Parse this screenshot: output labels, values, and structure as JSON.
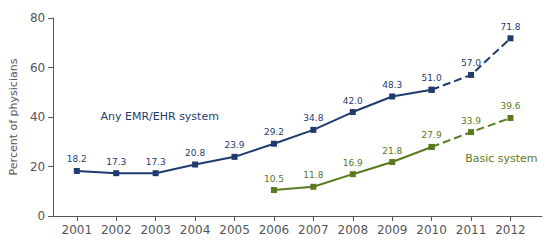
{
  "chart_data": {
    "type": "line",
    "ylabel": "Percent of physicians",
    "x": [
      2001,
      2002,
      2003,
      2004,
      2005,
      2006,
      2007,
      2008,
      2009,
      2010,
      2011,
      2012
    ],
    "xlim": [
      2000.4,
      2012.8
    ],
    "xticks": [
      2001,
      2002,
      2003,
      2004,
      2005,
      2006,
      2007,
      2008,
      2009,
      2010,
      2011,
      2012
    ],
    "ylim": [
      0,
      80
    ],
    "yticks": [
      0,
      20,
      40,
      60,
      80
    ],
    "grid": false,
    "data_labels": true,
    "marker": "square",
    "series": [
      {
        "name": "Any EMR/EHR system",
        "color": "#1F3B6E",
        "line_style": "solid",
        "values": [
          18.2,
          17.3,
          17.3,
          20.8,
          23.9,
          29.2,
          34.8,
          42.0,
          48.3,
          51.0,
          null,
          null
        ],
        "value_labels": [
          "18.2",
          "17.3",
          "17.3",
          "20.8",
          "23.9",
          "29.2",
          "34.8",
          "42.0",
          "48.3",
          "51.0",
          null,
          null
        ]
      },
      {
        "name": "Any EMR/EHR system",
        "color": "#1F3B6E",
        "line_style": "dashed",
        "values": [
          null,
          null,
          null,
          null,
          null,
          null,
          null,
          null,
          null,
          51.0,
          57.0,
          71.8
        ],
        "value_labels": [
          null,
          null,
          null,
          null,
          null,
          null,
          null,
          null,
          null,
          "51.0",
          "57.0",
          "71.8"
        ]
      },
      {
        "name": "Basic system",
        "color": "#5A7A1E",
        "line_style": "solid",
        "values": [
          null,
          null,
          null,
          null,
          null,
          10.5,
          11.8,
          16.9,
          21.8,
          27.9,
          null,
          null
        ],
        "value_labels": [
          null,
          null,
          null,
          null,
          null,
          "10.5",
          "11.8",
          "16.9",
          "21.8",
          "27.9",
          null,
          null
        ]
      },
      {
        "name": "Basic system",
        "color": "#5A7A1E",
        "line_style": "dashed",
        "values": [
          null,
          null,
          null,
          null,
          null,
          null,
          null,
          null,
          null,
          27.9,
          33.9,
          39.6
        ],
        "value_labels": [
          null,
          null,
          null,
          null,
          null,
          null,
          null,
          null,
          null,
          "27.9",
          "33.9",
          "39.6"
        ]
      }
    ]
  }
}
